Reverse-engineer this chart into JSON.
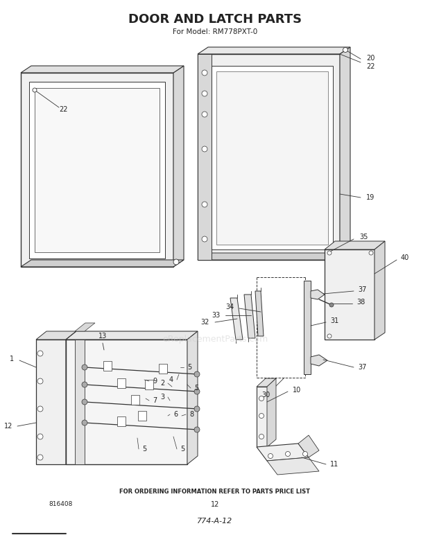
{
  "title": "DOOR AND LATCH PARTS",
  "subtitle": "For Model: RM778PXT-0",
  "footer_text": "FOR ORDERING INFORMATION REFER TO PARTS PRICE LIST",
  "part_number_left": "816408",
  "page_number": "12",
  "diagram_code": "774-A-12",
  "watermark": "eReplacementParts.com",
  "bg_color": "#ffffff",
  "line_color": "#333333",
  "text_color": "#222222",
  "wm_color": "#cccccc"
}
